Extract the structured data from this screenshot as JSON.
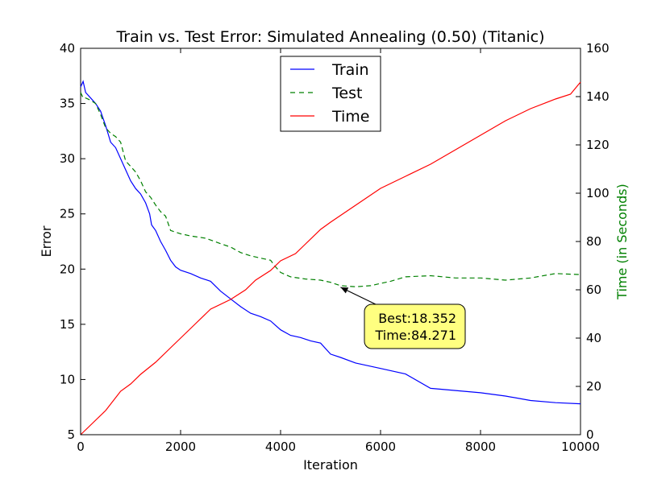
{
  "chart_data": {
    "type": "line",
    "title": "Train vs. Test Error: Simulated Annealing (0.50) (Titanic)",
    "xlabel": "Iteration",
    "ylabel": "Error",
    "y2label": "Time (in Seconds)",
    "xlim": [
      0,
      10000
    ],
    "ylim": [
      5,
      40
    ],
    "y2lim": [
      0,
      160
    ],
    "xticks": [
      0,
      2000,
      4000,
      6000,
      8000,
      10000
    ],
    "yticks": [
      5,
      10,
      15,
      20,
      25,
      30,
      35,
      40
    ],
    "y2ticks": [
      0,
      20,
      40,
      60,
      80,
      100,
      120,
      140,
      160
    ],
    "grid": false,
    "legend_position": "top-center",
    "series": [
      {
        "name": "Train",
        "axis": "left",
        "color": "#0000ff",
        "style": "solid",
        "x": [
          0,
          50,
          100,
          200,
          300,
          400,
          500,
          600,
          700,
          800,
          900,
          1000,
          1100,
          1200,
          1300,
          1380,
          1420,
          1500,
          1600,
          1700,
          1800,
          1900,
          2000,
          2200,
          2400,
          2600,
          2800,
          3000,
          3200,
          3400,
          3600,
          3800,
          4000,
          4200,
          4400,
          4600,
          4800,
          5000,
          5200,
          5500,
          6000,
          6500,
          7000,
          7500,
          8000,
          8500,
          9000,
          9500,
          10000
        ],
        "y": [
          36.5,
          37.0,
          36.0,
          35.5,
          35.0,
          34.3,
          33.0,
          31.5,
          31.0,
          30.0,
          29.0,
          28.0,
          27.3,
          26.8,
          26.0,
          25.0,
          24.0,
          23.5,
          22.5,
          21.7,
          20.8,
          20.2,
          19.9,
          19.6,
          19.2,
          18.9,
          18.0,
          17.3,
          16.6,
          16.0,
          15.7,
          15.3,
          14.5,
          14.0,
          13.8,
          13.5,
          13.3,
          12.3,
          12.0,
          11.5,
          11.0,
          10.5,
          9.2,
          9.0,
          8.8,
          8.5,
          8.1,
          7.9,
          7.8
        ]
      },
      {
        "name": "Test",
        "axis": "left",
        "color": "#008000",
        "style": "dashed",
        "x": [
          0,
          50,
          100,
          200,
          300,
          400,
          500,
          600,
          700,
          800,
          900,
          1000,
          1100,
          1200,
          1300,
          1400,
          1500,
          1600,
          1700,
          1800,
          2000,
          2200,
          2500,
          2800,
          3000,
          3200,
          3400,
          3600,
          3800,
          3900,
          4000,
          4200,
          4500,
          4800,
          5000,
          5200,
          5500,
          5800,
          6000,
          6200,
          6500,
          7000,
          7500,
          8000,
          8500,
          9000,
          9500,
          10000
        ],
        "y": [
          36.0,
          35.5,
          35.5,
          35.3,
          35.0,
          34.0,
          32.8,
          32.3,
          32.0,
          31.5,
          29.8,
          29.3,
          28.8,
          28.0,
          27.0,
          26.5,
          25.8,
          25.2,
          24.8,
          23.5,
          23.2,
          23.0,
          22.8,
          22.3,
          22.0,
          21.5,
          21.2,
          21.0,
          20.8,
          20.2,
          19.7,
          19.3,
          19.1,
          19.0,
          18.8,
          18.5,
          18.4,
          18.5,
          18.7,
          18.9,
          19.3,
          19.4,
          19.2,
          19.2,
          19.0,
          19.2,
          19.6,
          19.5
        ]
      },
      {
        "name": "Time",
        "axis": "right",
        "color": "#ff0000",
        "style": "solid",
        "x": [
          0,
          200,
          500,
          800,
          1000,
          1200,
          1500,
          1800,
          2000,
          2300,
          2600,
          3000,
          3300,
          3500,
          3800,
          4000,
          4300,
          4500,
          4800,
          5000,
          5500,
          6000,
          6500,
          7000,
          7500,
          8000,
          8500,
          9000,
          9500,
          9800,
          10000
        ],
        "y": [
          0,
          4,
          10,
          18,
          21,
          25,
          30,
          36,
          40,
          46,
          52,
          56,
          60,
          64,
          68,
          72,
          75,
          79,
          85,
          88,
          95,
          102,
          107,
          112,
          118,
          124,
          130,
          135,
          139,
          141,
          146
        ]
      }
    ],
    "annotation": {
      "lines": [
        "Best:18.352",
        "Time:84.271"
      ],
      "point_x": 5200,
      "point_y": 18.352
    }
  }
}
